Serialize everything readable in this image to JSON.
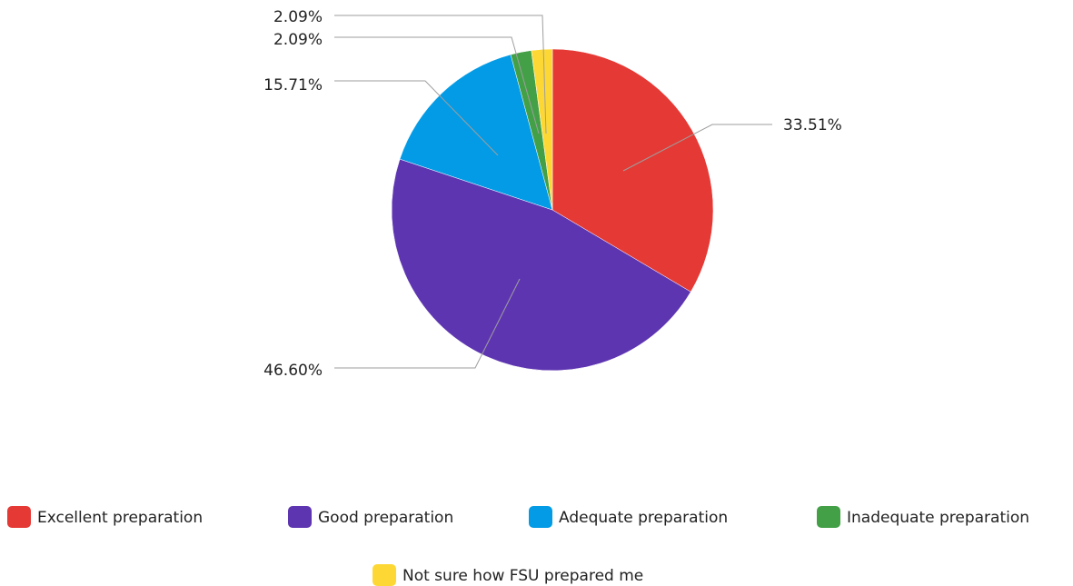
{
  "chart_data": {
    "type": "pie",
    "title": "",
    "start_angle_deg": 0,
    "direction": "clockwise",
    "slices": [
      {
        "label": "Excellent preparation",
        "value": 33.51,
        "display": "33.51%",
        "color": "#e53935"
      },
      {
        "label": "Good preparation",
        "value": 46.6,
        "display": "46.60%",
        "color": "#5e35b1"
      },
      {
        "label": "Adequate preparation",
        "value": 15.71,
        "display": "15.71%",
        "color": "#039be5"
      },
      {
        "label": "Inadequate preparation",
        "value": 2.09,
        "display": "2.09%",
        "color": "#43a047"
      },
      {
        "label": "Not sure how FSU prepared me",
        "value": 2.09,
        "display": "2.09%",
        "color": "#fdd835"
      }
    ],
    "legend_position": "bottom",
    "data_labels": "outside-with-leader-lines"
  }
}
